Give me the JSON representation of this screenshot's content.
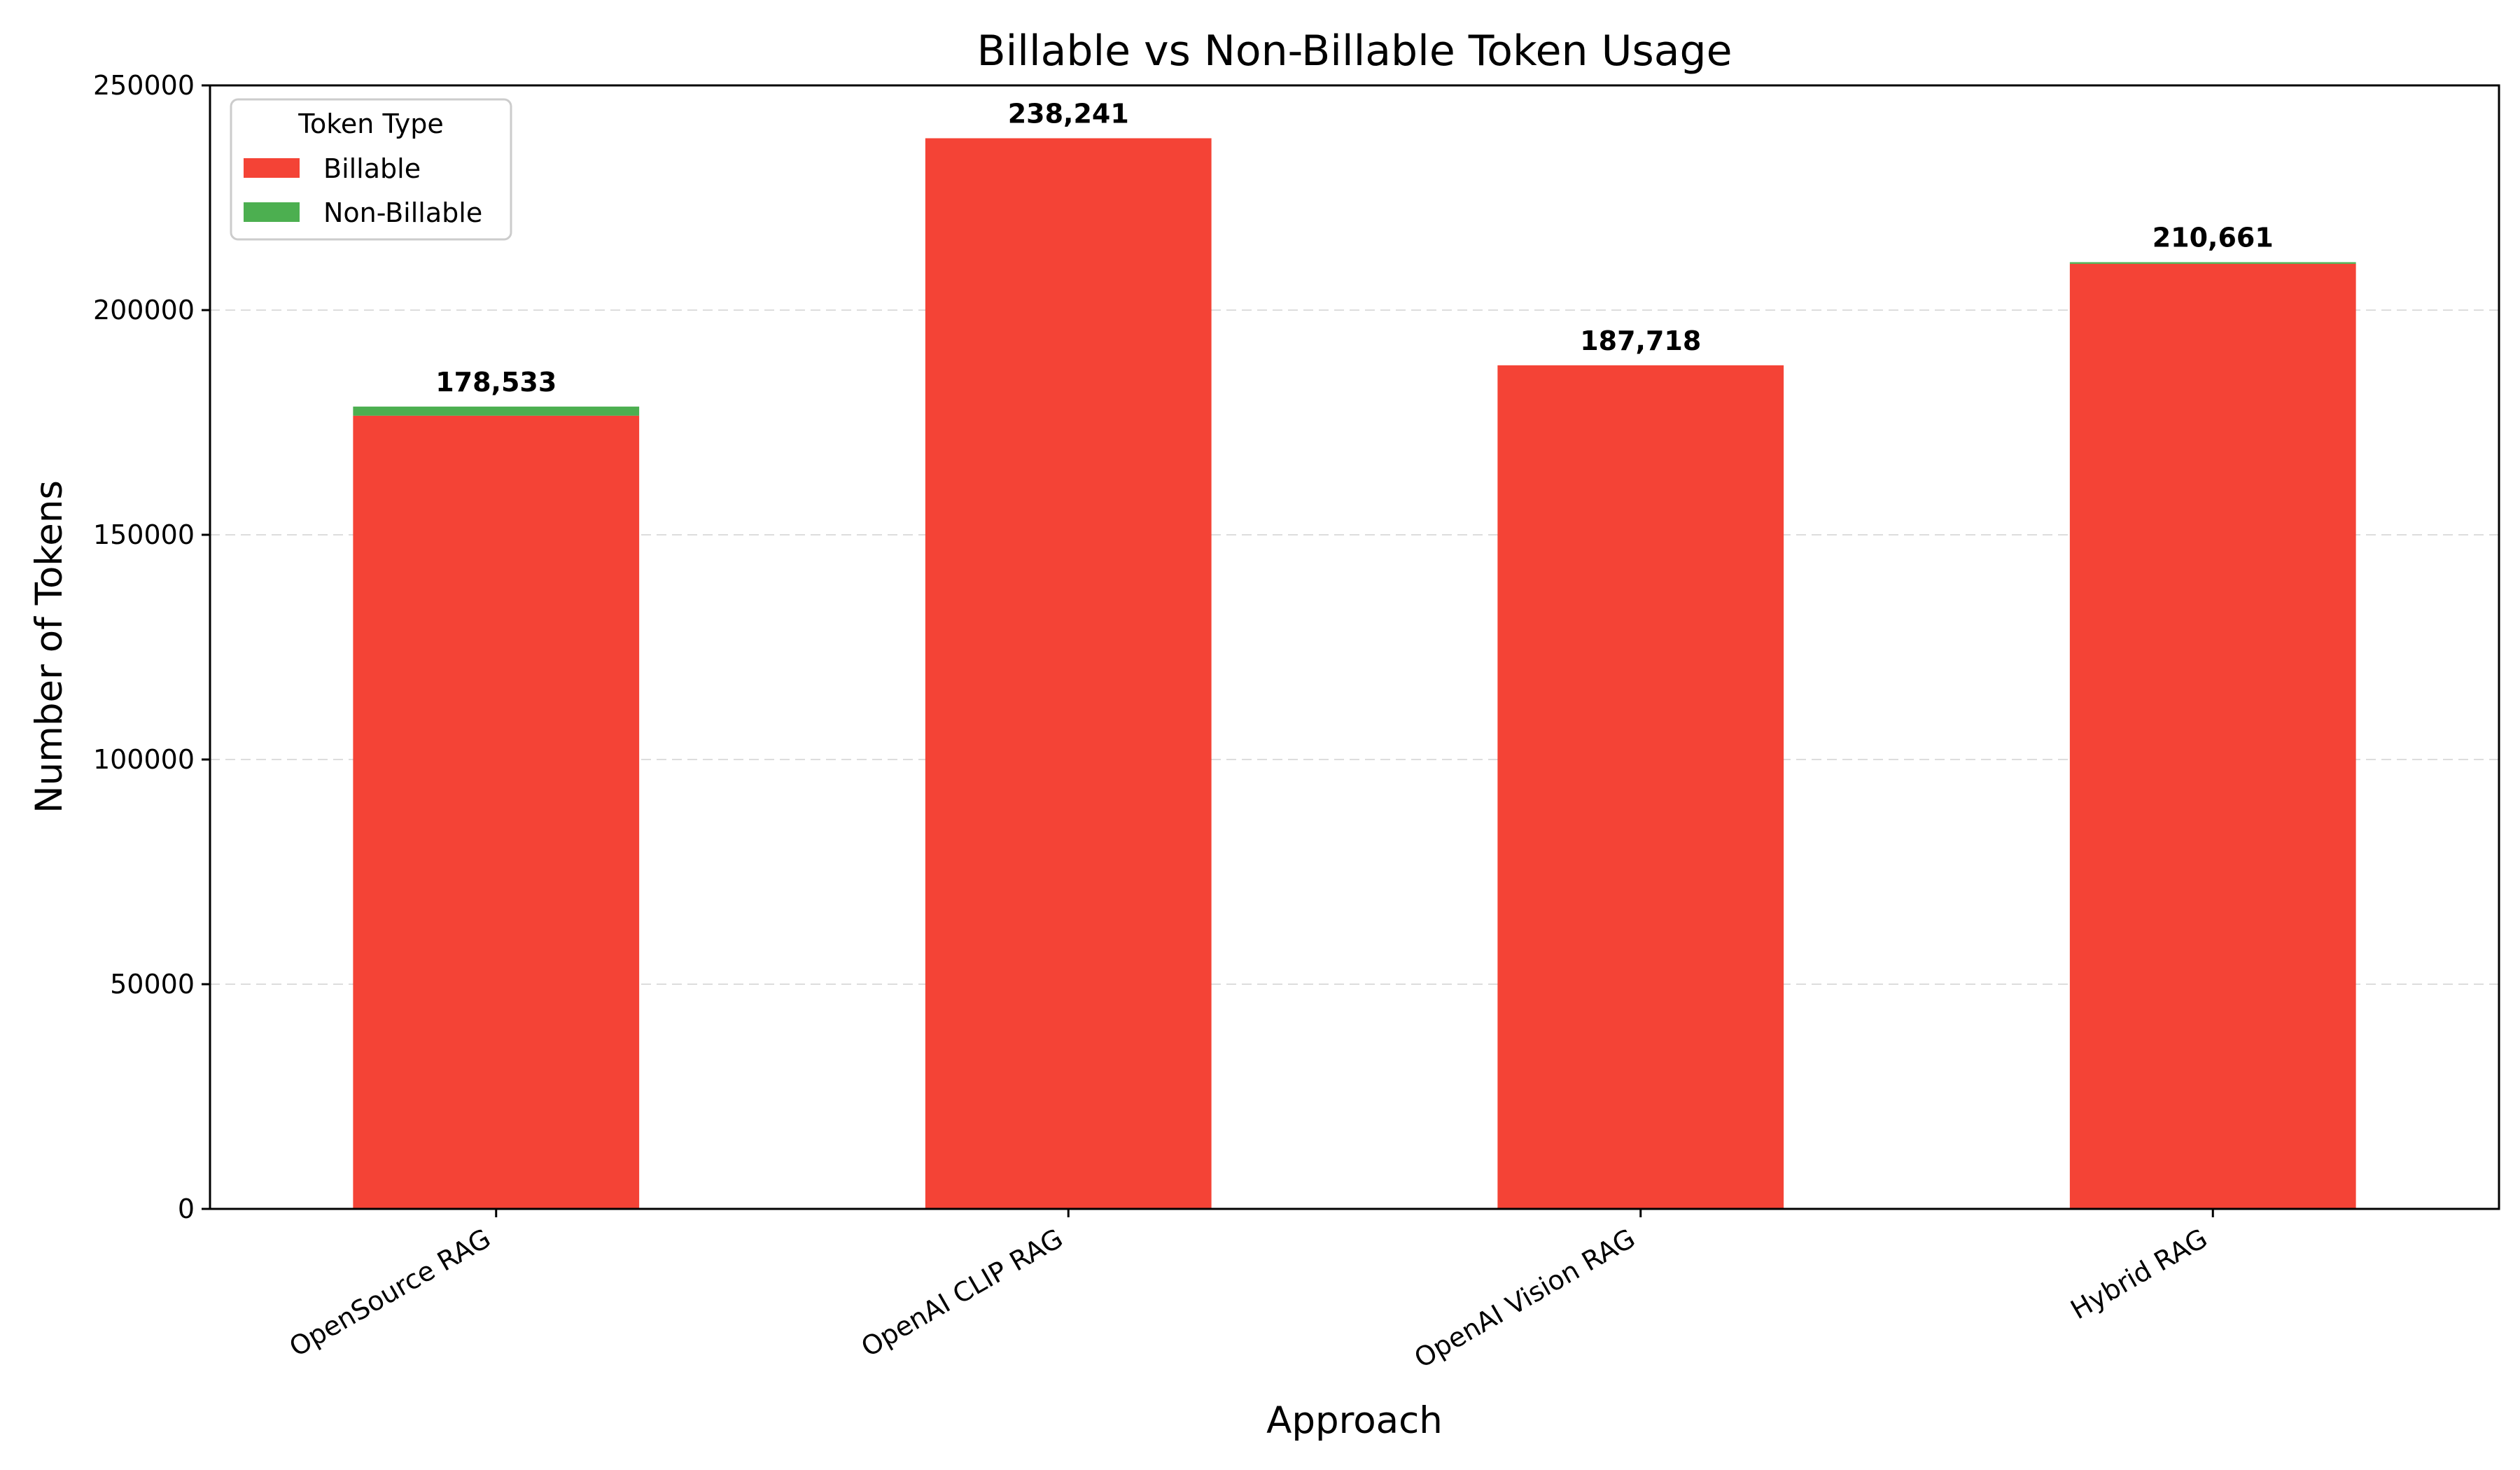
{
  "chart_data": {
    "type": "bar",
    "stacked": true,
    "title": "Billable vs Non-Billable Token Usage",
    "xlabel": "Approach",
    "ylabel": "Number of Tokens",
    "categories": [
      "OpenSource RAG",
      "OpenAI CLIP RAG",
      "OpenAI Vision RAG",
      "Hybrid RAG"
    ],
    "series": [
      {
        "name": "Billable",
        "color": "#f44336",
        "values": [
          176500,
          238241,
          187718,
          210300
        ]
      },
      {
        "name": "Non-Billable",
        "color": "#4caf50",
        "values": [
          2033,
          0,
          0,
          361
        ]
      }
    ],
    "totals": [
      178533,
      238241,
      187718,
      210661
    ],
    "total_labels": [
      "178,533",
      "238,241",
      "187,718",
      "210,661"
    ],
    "ylim": [
      0,
      250000
    ],
    "yticks": [
      0,
      50000,
      100000,
      150000,
      200000,
      250000
    ],
    "ytick_labels": [
      "0",
      "50000",
      "100000",
      "150000",
      "200000",
      "250000"
    ],
    "grid": "y-dashed",
    "legend": {
      "title": "Token Type",
      "position": "upper-left",
      "entries": [
        "Billable",
        "Non-Billable"
      ]
    }
  }
}
